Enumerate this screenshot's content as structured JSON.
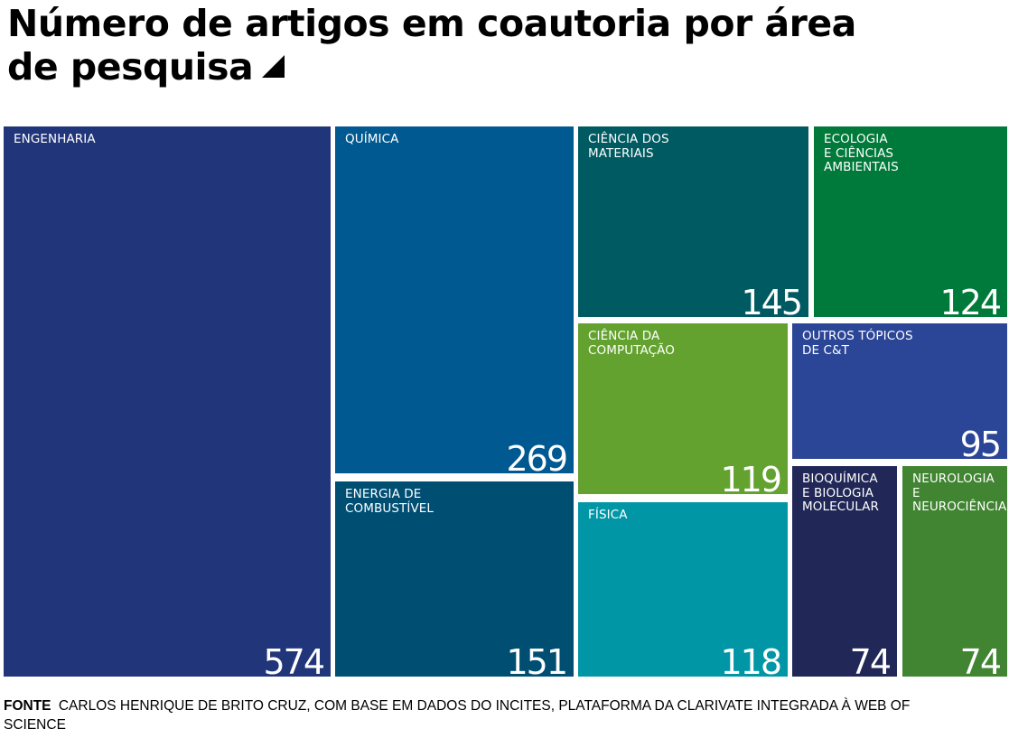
{
  "title": "Número de artigos em coautoria por área de pesquisa",
  "title_marker_icon": "triangle-marker-icon",
  "source": {
    "label": "FONTE",
    "text": "CARLOS HENRIQUE DE BRITO CRUZ, COM BASE EM DADOS DO INCITES, PLATAFORMA DA CLARIVATE INTEGRADA À WEB OF SCIENCE"
  },
  "chart_data": {
    "type": "treemap",
    "title": "Número de artigos em coautoria por área de pesquisa",
    "items": [
      {
        "label": "ENGENHARIA",
        "value": 574,
        "color": "#21357A"
      },
      {
        "label": "QUÍMICA",
        "value": 269,
        "color": "#005A91"
      },
      {
        "label": "ENERGIA DE\nCOMBUSTÍVEL",
        "value": 151,
        "color": "#004F73"
      },
      {
        "label": "CIÊNCIA DOS\nMATERIAIS",
        "value": 145,
        "color": "#005A61"
      },
      {
        "label": "ECOLOGIA\nE CIÊNCIAS\nAMBIENTAIS",
        "value": 124,
        "color": "#007A3A"
      },
      {
        "label": "CIÊNCIA DA\nCOMPUTAÇÃO",
        "value": 119,
        "color": "#63A22F"
      },
      {
        "label": "FÍSICA",
        "value": 118,
        "color": "#0096A6"
      },
      {
        "label": "OUTROS TÓPICOS\nDE C&T",
        "value": 95,
        "color": "#2B4597"
      },
      {
        "label": "BIOQUÍMICA\nE BIOLOGIA\nMOLECULAR",
        "value": 74,
        "color": "#212756"
      },
      {
        "label": "NEUROLOGIA\nE NEUROCIÊNCIA",
        "value": 74,
        "color": "#418432"
      }
    ]
  }
}
